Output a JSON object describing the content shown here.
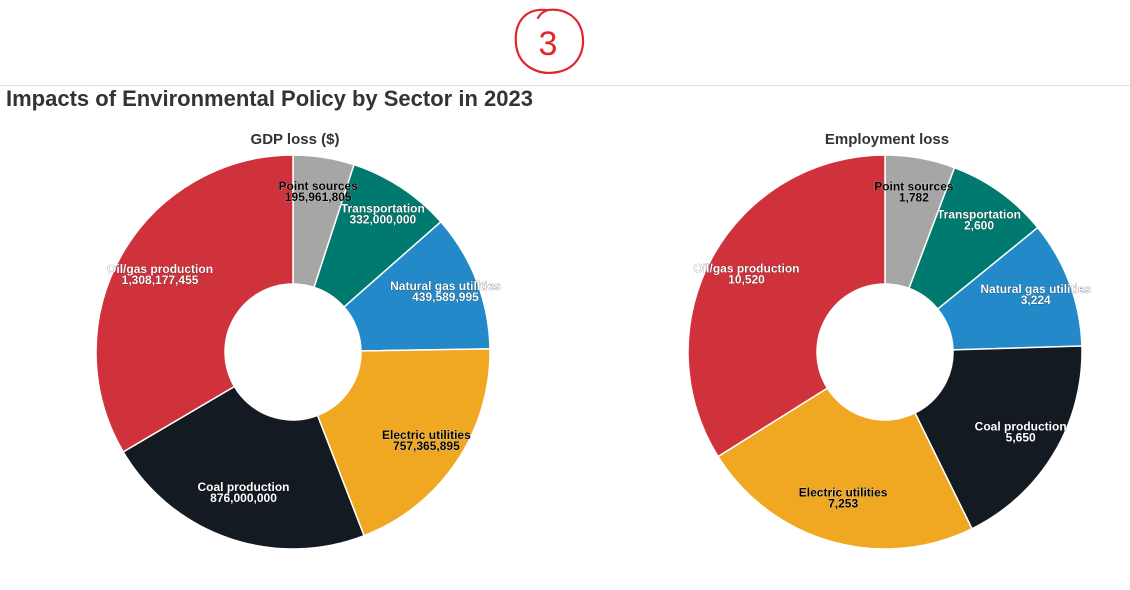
{
  "annotation": {
    "text": "3",
    "color": "#e0262c"
  },
  "title": "Impacts of Environmental Policy by Sector in 2023",
  "chart_data": [
    {
      "type": "pie",
      "donut": true,
      "title": "GDP loss ($)",
      "categories": [
        "Point sources",
        "Transportation",
        "Natural gas utilities",
        "Electric utilities",
        "Coal production",
        "Oil/gas production"
      ],
      "values": [
        195961805,
        332000000,
        439589995,
        757365895,
        876000000,
        1308177455
      ],
      "value_labels": [
        "195,961,805",
        "332,000,000",
        "439,589,995",
        "757,365,895",
        "876,000,000",
        "1,308,177,455"
      ],
      "colors": [
        "#a6a6a6",
        "#007a6e",
        "#2389c8",
        "#f0a823",
        "#131a22",
        "#d0323b"
      ],
      "label_colors": [
        "#000000",
        "#ffffff",
        "#ffffff",
        "#000000",
        "#ffffff",
        "#ffffff"
      ]
    },
    {
      "type": "pie",
      "donut": true,
      "title": "Employment loss",
      "categories": [
        "Point sources",
        "Transportation",
        "Natural gas utilities",
        "Coal production",
        "Electric utilities",
        "Oil/gas production"
      ],
      "values": [
        1782,
        2600,
        3224,
        5650,
        7253,
        10520
      ],
      "value_labels": [
        "1,782",
        "2,600",
        "3,224",
        "5,650",
        "7,253",
        "10,520"
      ],
      "colors": [
        "#a6a6a6",
        "#007a6e",
        "#2389c8",
        "#131a22",
        "#f0a823",
        "#d0323b"
      ],
      "label_colors": [
        "#000000",
        "#ffffff",
        "#ffffff",
        "#ffffff",
        "#000000",
        "#ffffff"
      ]
    }
  ]
}
